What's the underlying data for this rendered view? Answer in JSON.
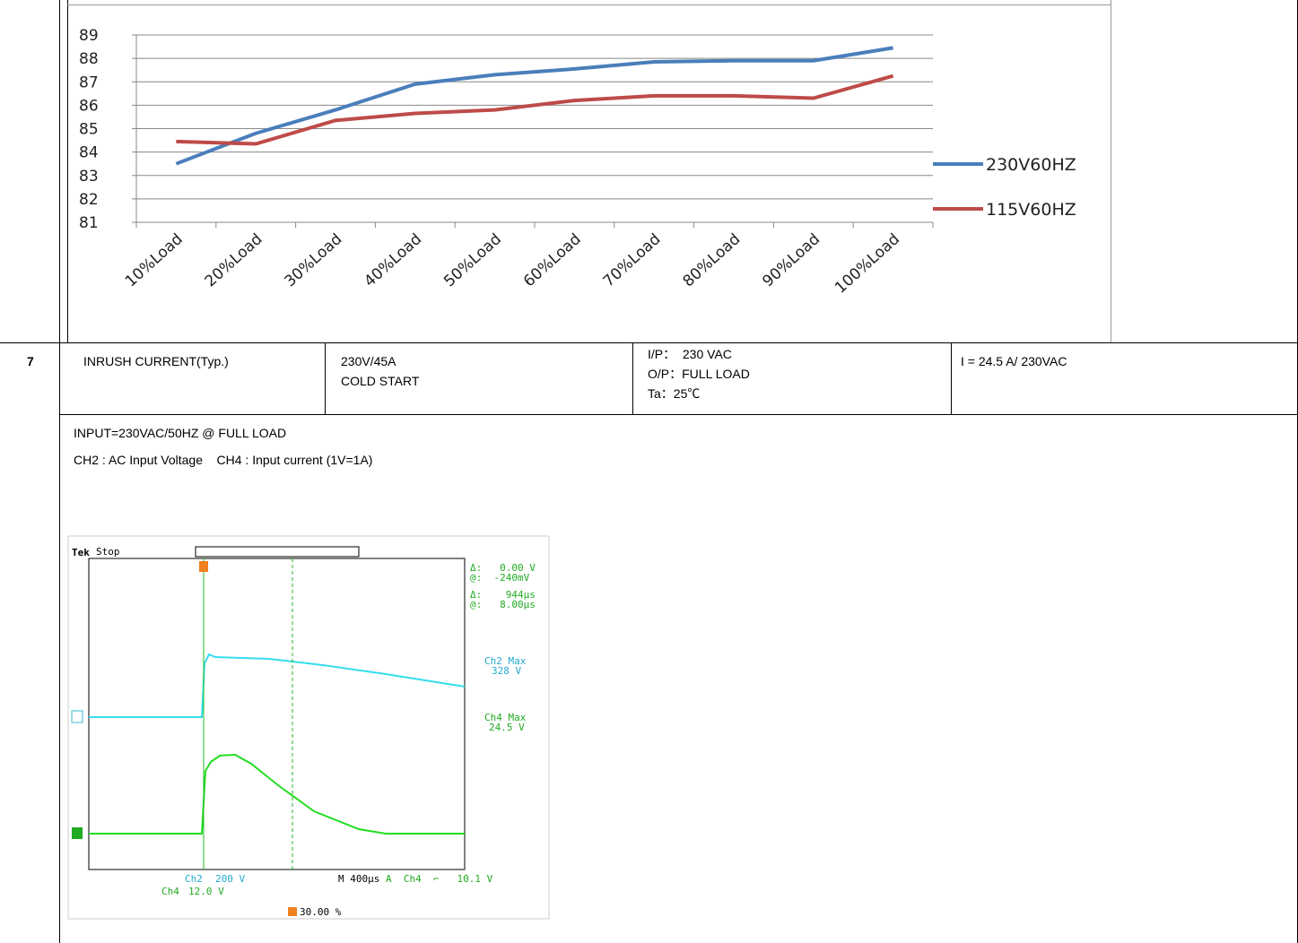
{
  "chart_data": {
    "type": "line",
    "categories": [
      "10%Load",
      "20%Load",
      "30%Load",
      "40%Load",
      "50%Load",
      "60%Load",
      "70%Load",
      "80%Load",
      "90%Load",
      "100%Load"
    ],
    "series": [
      {
        "name": "230V60HZ",
        "color": "#4a7ebb",
        "values": [
          83.5,
          84.8,
          85.8,
          86.9,
          87.3,
          87.55,
          87.85,
          87.9,
          87.9,
          88.45
        ]
      },
      {
        "name": "115V60HZ",
        "color": "#be4b48",
        "values": [
          84.45,
          84.35,
          85.35,
          85.65,
          85.8,
          86.2,
          86.4,
          86.4,
          86.3,
          87.25
        ]
      }
    ],
    "ylim": [
      81,
      89
    ],
    "yticks": [
      81,
      82,
      83,
      84,
      85,
      86,
      87,
      88,
      89
    ],
    "grid": true,
    "legend": "right"
  },
  "table": {
    "rows": [
      [
        "7",
        "INRUSH CURRENT(Typ.)",
        [
          "230V/45A",
          "COLD START"
        ],
        [
          "I/P：  230 VAC",
          "O/P：FULL LOAD",
          "Ta：25℃"
        ],
        "I = 24.5 A/ 230VAC"
      ]
    ]
  },
  "notes": [
    "INPUT=230VAC/50HZ @ FULL LOAD",
    "CH2 : AC Input Voltage    CH4 : Input current (1V=1A)"
  ],
  "scope": {
    "brand": "Tek",
    "status": "Stop",
    "cursor": [
      "Δ:   0.00 V",
      "@:  -240mV",
      "Δ:    944µs",
      "@:   8.00µs"
    ],
    "ch2_max": [
      "Ch2 Max",
      "328 V"
    ],
    "ch4_max": [
      "Ch4 Max",
      "24.5 V"
    ],
    "ch2_scale": [
      "Ch2",
      "200 V"
    ],
    "timebase": "M 400µs",
    "trigger": "A  Ch4  ⌐   10.1 V",
    "ch4_scale": [
      "Ch4",
      "12.0 V"
    ],
    "trigger_pos": "30.00 %"
  }
}
